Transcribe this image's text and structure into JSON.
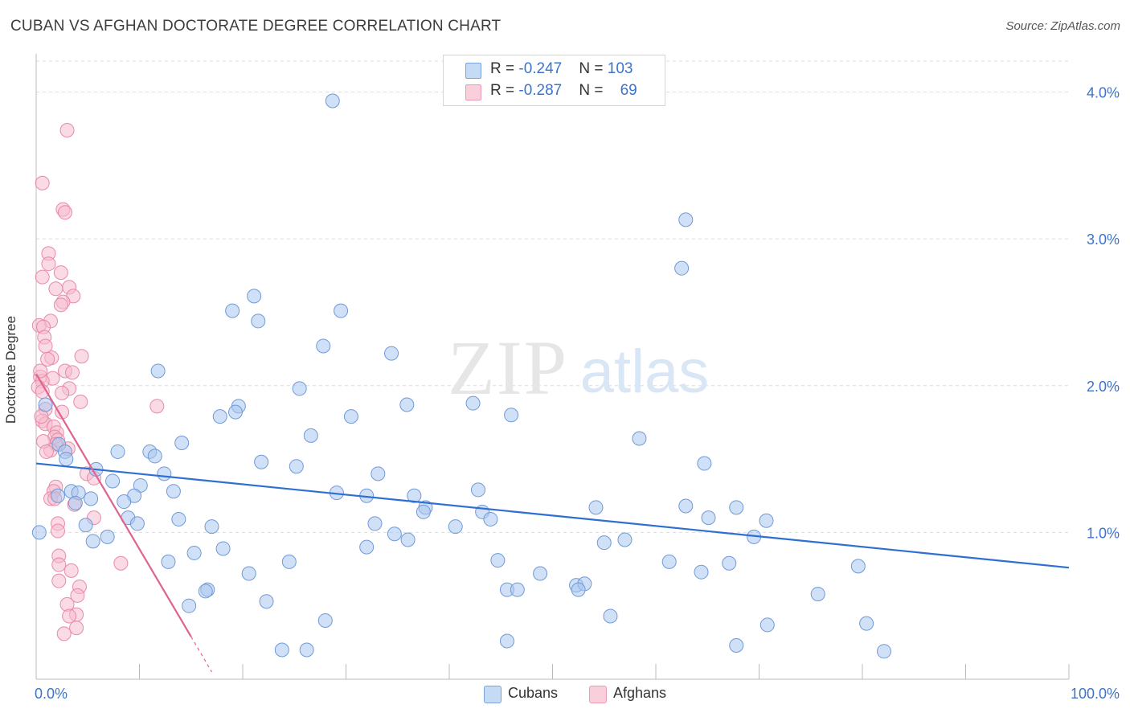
{
  "header": {
    "title": "CUBAN VS AFGHAN DOCTORATE DEGREE CORRELATION CHART",
    "source": "Source: ZipAtlas.com"
  },
  "watermark": {
    "zip": "ZIP",
    "atlas": "atlas"
  },
  "legend_top": {
    "rows": [
      {
        "r_label": "R = ",
        "r_value": "-0.247",
        "n_label": "N = ",
        "n_value": "103",
        "color": "#a9c6ef"
      },
      {
        "r_label": "R = ",
        "r_value": "-0.287",
        "n_label": "N = ",
        "n_value": "69",
        "color": "#f4b6c8"
      }
    ]
  },
  "legend_bottom": [
    {
      "label": "Cubans",
      "color": "#a9c6ef"
    },
    {
      "label": "Afghans",
      "color": "#f4b6c8"
    }
  ],
  "colors": {
    "cuban_fill": "#a9c6ef",
    "cuban_stroke": "#6f9ad8",
    "cuban_line": "#2e6fd1",
    "afghan_fill": "#f6bccd",
    "afghan_stroke": "#e98aa7",
    "afghan_line": "#e0628f",
    "tick_label": "#3d73c9",
    "grid": "#dcdcdc"
  },
  "chart_data": {
    "type": "scatter",
    "title": "CUBAN VS AFGHAN DOCTORATE DEGREE CORRELATION CHART",
    "xlabel": "",
    "ylabel": "Doctorate Degree",
    "xlim": [
      0,
      100
    ],
    "ylim": [
      0,
      4.2
    ],
    "x_tick_labels": [
      "0.0%",
      "100.0%"
    ],
    "y_ticks": [
      1.0,
      2.0,
      3.0,
      4.0
    ],
    "y_tick_labels": [
      "1.0%",
      "2.0%",
      "3.0%",
      "4.0%"
    ],
    "grid": true,
    "legend_position": "top-center",
    "series": [
      {
        "name": "Cubans",
        "r": -0.247,
        "n": 103,
        "trend": {
          "x": [
            0,
            100
          ],
          "y": [
            1.47,
            0.76
          ]
        },
        "points": [
          [
            28.7,
            3.94
          ],
          [
            62.9,
            3.13
          ],
          [
            62.5,
            2.8
          ],
          [
            21.1,
            2.61
          ],
          [
            19.0,
            2.51
          ],
          [
            29.5,
            2.51
          ],
          [
            21.5,
            2.44
          ],
          [
            27.8,
            2.27
          ],
          [
            34.4,
            2.22
          ],
          [
            11.8,
            2.1
          ],
          [
            25.5,
            1.98
          ],
          [
            0.9,
            1.87
          ],
          [
            35.9,
            1.87
          ],
          [
            42.3,
            1.88
          ],
          [
            19.6,
            1.86
          ],
          [
            19.3,
            1.82
          ],
          [
            17.8,
            1.79
          ],
          [
            30.5,
            1.79
          ],
          [
            46.0,
            1.8
          ],
          [
            26.6,
            1.66
          ],
          [
            58.4,
            1.64
          ],
          [
            14.1,
            1.61
          ],
          [
            2.2,
            1.6
          ],
          [
            7.9,
            1.55
          ],
          [
            11.0,
            1.55
          ],
          [
            11.5,
            1.52
          ],
          [
            2.8,
            1.55
          ],
          [
            2.9,
            1.5
          ],
          [
            21.8,
            1.48
          ],
          [
            25.2,
            1.45
          ],
          [
            5.8,
            1.43
          ],
          [
            64.7,
            1.47
          ],
          [
            33.1,
            1.4
          ],
          [
            12.4,
            1.4
          ],
          [
            7.4,
            1.35
          ],
          [
            10.1,
            1.32
          ],
          [
            42.8,
            1.29
          ],
          [
            13.3,
            1.28
          ],
          [
            3.4,
            1.28
          ],
          [
            4.1,
            1.27
          ],
          [
            29.1,
            1.27
          ],
          [
            32.0,
            1.25
          ],
          [
            36.6,
            1.25
          ],
          [
            2.1,
            1.25
          ],
          [
            5.3,
            1.23
          ],
          [
            9.5,
            1.25
          ],
          [
            8.5,
            1.21
          ],
          [
            3.8,
            1.2
          ],
          [
            37.7,
            1.17
          ],
          [
            54.2,
            1.17
          ],
          [
            62.9,
            1.18
          ],
          [
            67.8,
            1.17
          ],
          [
            37.5,
            1.14
          ],
          [
            43.2,
            1.14
          ],
          [
            8.9,
            1.1
          ],
          [
            13.8,
            1.09
          ],
          [
            44.0,
            1.09
          ],
          [
            65.1,
            1.1
          ],
          [
            70.7,
            1.08
          ],
          [
            9.8,
            1.06
          ],
          [
            32.8,
            1.06
          ],
          [
            4.8,
            1.05
          ],
          [
            17.0,
            1.04
          ],
          [
            40.6,
            1.04
          ],
          [
            6.9,
            0.97
          ],
          [
            34.7,
            0.99
          ],
          [
            36.0,
            0.95
          ],
          [
            5.5,
            0.94
          ],
          [
            57.0,
            0.95
          ],
          [
            55.0,
            0.93
          ],
          [
            69.5,
            0.97
          ],
          [
            32.0,
            0.9
          ],
          [
            18.1,
            0.89
          ],
          [
            15.3,
            0.86
          ],
          [
            44.7,
            0.81
          ],
          [
            12.8,
            0.8
          ],
          [
            24.5,
            0.8
          ],
          [
            61.3,
            0.8
          ],
          [
            67.1,
            0.79
          ],
          [
            79.6,
            0.77
          ],
          [
            20.6,
            0.72
          ],
          [
            48.8,
            0.72
          ],
          [
            64.4,
            0.73
          ],
          [
            52.3,
            0.64
          ],
          [
            53.1,
            0.65
          ],
          [
            45.6,
            0.61
          ],
          [
            46.6,
            0.61
          ],
          [
            16.6,
            0.61
          ],
          [
            16.4,
            0.6
          ],
          [
            52.5,
            0.61
          ],
          [
            75.7,
            0.58
          ],
          [
            22.3,
            0.53
          ],
          [
            14.8,
            0.5
          ],
          [
            55.6,
            0.43
          ],
          [
            28.0,
            0.4
          ],
          [
            70.8,
            0.37
          ],
          [
            80.4,
            0.38
          ],
          [
            45.6,
            0.26
          ],
          [
            23.8,
            0.2
          ],
          [
            26.2,
            0.2
          ],
          [
            67.8,
            0.23
          ],
          [
            82.1,
            0.19
          ],
          [
            0.3,
            1.0
          ]
        ]
      },
      {
        "name": "Afghans",
        "r": -0.287,
        "n": 69,
        "trend": {
          "x": [
            0,
            15.0
          ],
          "y": [
            2.08,
            0.29
          ]
        },
        "trend_dashed": {
          "x": [
            15.0,
            17.0
          ],
          "y": [
            0.29,
            0.05
          ]
        },
        "points": [
          [
            3.0,
            3.74
          ],
          [
            0.6,
            3.38
          ],
          [
            2.6,
            3.2
          ],
          [
            2.8,
            3.18
          ],
          [
            1.2,
            2.9
          ],
          [
            1.2,
            2.83
          ],
          [
            2.4,
            2.77
          ],
          [
            0.6,
            2.74
          ],
          [
            3.2,
            2.67
          ],
          [
            1.9,
            2.66
          ],
          [
            3.6,
            2.61
          ],
          [
            2.6,
            2.57
          ],
          [
            2.4,
            2.55
          ],
          [
            1.4,
            2.44
          ],
          [
            0.3,
            2.41
          ],
          [
            0.7,
            2.4
          ],
          [
            0.8,
            2.33
          ],
          [
            0.9,
            2.27
          ],
          [
            4.4,
            2.2
          ],
          [
            1.5,
            2.19
          ],
          [
            1.1,
            2.18
          ],
          [
            2.8,
            2.1
          ],
          [
            3.5,
            2.09
          ],
          [
            0.4,
            2.06
          ],
          [
            1.6,
            2.05
          ],
          [
            0.6,
            2.03
          ],
          [
            0.2,
            1.99
          ],
          [
            3.2,
            1.98
          ],
          [
            0.6,
            1.96
          ],
          [
            4.3,
            1.89
          ],
          [
            11.7,
            1.86
          ],
          [
            0.9,
            1.84
          ],
          [
            2.5,
            1.82
          ],
          [
            0.6,
            1.76
          ],
          [
            0.9,
            1.74
          ],
          [
            1.7,
            1.72
          ],
          [
            2.0,
            1.68
          ],
          [
            1.8,
            1.65
          ],
          [
            2.1,
            1.63
          ],
          [
            1.9,
            1.6
          ],
          [
            1.4,
            1.56
          ],
          [
            3.1,
            1.57
          ],
          [
            4.9,
            1.4
          ],
          [
            5.6,
            1.37
          ],
          [
            1.9,
            1.31
          ],
          [
            1.7,
            1.28
          ],
          [
            1.4,
            1.23
          ],
          [
            1.8,
            1.23
          ],
          [
            3.7,
            1.19
          ],
          [
            5.6,
            1.1
          ],
          [
            2.1,
            1.06
          ],
          [
            2.1,
            1.01
          ],
          [
            2.2,
            0.84
          ],
          [
            2.2,
            0.78
          ],
          [
            8.2,
            0.79
          ],
          [
            3.4,
            0.74
          ],
          [
            2.2,
            0.67
          ],
          [
            4.2,
            0.63
          ],
          [
            4.0,
            0.57
          ],
          [
            3.0,
            0.51
          ],
          [
            3.9,
            0.44
          ],
          [
            3.2,
            0.43
          ],
          [
            3.9,
            0.35
          ],
          [
            2.7,
            0.31
          ],
          [
            0.7,
            1.62
          ],
          [
            0.4,
            2.1
          ],
          [
            1.0,
            1.55
          ],
          [
            2.5,
            1.95
          ],
          [
            0.5,
            1.79
          ]
        ]
      }
    ]
  }
}
